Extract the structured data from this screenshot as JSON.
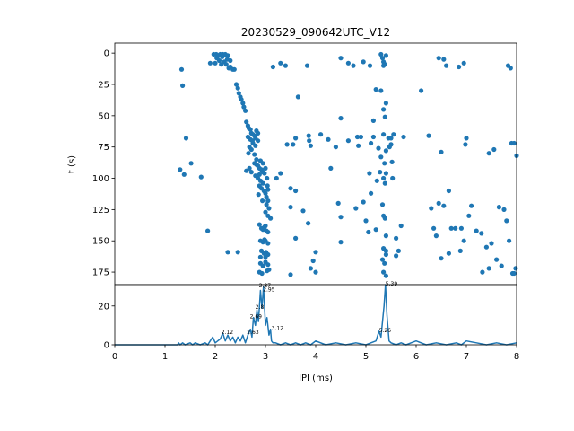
{
  "chart_data": [
    {
      "type": "scatter",
      "title": "20230529_090642UTC_V12",
      "ylabel": "t (s)",
      "xlim": [
        0,
        8
      ],
      "ylim": [
        185,
        -8
      ],
      "y_inverted": true,
      "yticks": [
        0,
        25,
        50,
        75,
        100,
        125,
        150,
        175
      ],
      "marker_color": "#1f77b4",
      "points": [
        [
          1.33,
          13
        ],
        [
          1.35,
          26
        ],
        [
          1.42,
          68
        ],
        [
          1.3,
          93
        ],
        [
          1.38,
          97
        ],
        [
          1.52,
          88
        ],
        [
          1.72,
          99
        ],
        [
          1.85,
          142
        ],
        [
          1.97,
          1
        ],
        [
          2.02,
          1
        ],
        [
          2.07,
          2
        ],
        [
          2.1,
          1
        ],
        [
          2.15,
          1
        ],
        [
          2.2,
          1
        ],
        [
          2.25,
          2
        ],
        [
          2.0,
          8
        ],
        [
          2.08,
          6
        ],
        [
          2.12,
          9
        ],
        [
          2.18,
          7
        ],
        [
          2.22,
          9
        ],
        [
          2.27,
          12
        ],
        [
          2.3,
          11
        ],
        [
          2.35,
          13
        ],
        [
          2.38,
          13
        ],
        [
          2.24,
          5
        ],
        [
          1.9,
          8
        ],
        [
          2.03,
          4
        ],
        [
          2.14,
          3
        ],
        [
          2.3,
          6
        ],
        [
          2.42,
          25
        ],
        [
          2.45,
          28
        ],
        [
          2.47,
          32
        ],
        [
          2.5,
          35
        ],
        [
          2.52,
          37
        ],
        [
          2.55,
          40
        ],
        [
          2.57,
          43
        ],
        [
          2.6,
          46
        ],
        [
          2.62,
          55
        ],
        [
          2.65,
          58
        ],
        [
          2.67,
          60
        ],
        [
          2.7,
          61
        ],
        [
          2.72,
          64
        ],
        [
          2.75,
          65
        ],
        [
          2.78,
          66
        ],
        [
          2.8,
          68
        ],
        [
          2.65,
          67
        ],
        [
          2.7,
          69
        ],
        [
          2.75,
          72
        ],
        [
          2.8,
          74
        ],
        [
          2.68,
          75
        ],
        [
          2.72,
          77
        ],
        [
          2.66,
          80
        ],
        [
          2.78,
          81
        ],
        [
          2.82,
          62
        ],
        [
          2.85,
          64
        ],
        [
          2.74,
          70
        ],
        [
          2.85,
          70
        ],
        [
          2.62,
          94
        ],
        [
          2.68,
          92
        ],
        [
          2.72,
          95
        ],
        [
          2.78,
          88
        ],
        [
          2.82,
          89
        ],
        [
          2.85,
          90
        ],
        [
          2.88,
          92
        ],
        [
          2.92,
          93
        ],
        [
          2.95,
          95
        ],
        [
          2.98,
          96
        ],
        [
          2.8,
          98
        ],
        [
          2.85,
          100
        ],
        [
          2.9,
          102
        ],
        [
          2.95,
          104
        ],
        [
          2.88,
          106
        ],
        [
          2.92,
          108
        ],
        [
          2.97,
          110
        ],
        [
          3.0,
          112
        ],
        [
          3.02,
          115
        ],
        [
          3.05,
          118
        ],
        [
          3.02,
          121
        ],
        [
          3.07,
          124
        ],
        [
          3.0,
          127
        ],
        [
          3.05,
          130
        ],
        [
          2.88,
          97
        ],
        [
          2.82,
          85
        ],
        [
          2.95,
          88
        ],
        [
          2.9,
          86
        ],
        [
          3.0,
          92
        ],
        [
          3.03,
          100
        ],
        [
          3.04,
          106
        ],
        [
          2.86,
          113
        ],
        [
          2.94,
          118
        ],
        [
          3.05,
          109
        ],
        [
          2.88,
          137
        ],
        [
          2.92,
          140
        ],
        [
          2.95,
          141
        ],
        [
          2.98,
          139
        ],
        [
          3.0,
          138
        ],
        [
          3.02,
          142
        ],
        [
          3.05,
          143
        ],
        [
          2.9,
          150
        ],
        [
          2.95,
          151
        ],
        [
          2.98,
          149
        ],
        [
          3.0,
          150
        ],
        [
          3.05,
          152
        ],
        [
          2.92,
          158
        ],
        [
          2.97,
          160
        ],
        [
          3.01,
          159
        ],
        [
          3.05,
          161
        ],
        [
          2.9,
          168
        ],
        [
          2.95,
          170
        ],
        [
          3.0,
          167
        ],
        [
          3.05,
          169
        ],
        [
          2.88,
          175
        ],
        [
          2.93,
          176
        ],
        [
          3.03,
          174
        ],
        [
          3.07,
          173
        ],
        [
          2.9,
          163
        ],
        [
          3.0,
          163
        ],
        [
          2.25,
          159
        ],
        [
          2.45,
          159
        ],
        [
          3.15,
          11
        ],
        [
          3.3,
          8
        ],
        [
          3.4,
          10
        ],
        [
          3.65,
          35
        ],
        [
          3.43,
          73
        ],
        [
          3.55,
          73
        ],
        [
          3.6,
          68
        ],
        [
          3.3,
          96
        ],
        [
          3.5,
          108
        ],
        [
          3.6,
          110
        ],
        [
          3.1,
          132
        ],
        [
          3.5,
          123
        ],
        [
          3.75,
          126
        ],
        [
          3.6,
          148
        ],
        [
          3.85,
          136
        ],
        [
          3.22,
          100
        ],
        [
          3.5,
          177
        ],
        [
          3.9,
          172
        ],
        [
          3.95,
          166
        ],
        [
          4.0,
          175
        ],
        [
          3.83,
          10
        ],
        [
          3.86,
          66
        ],
        [
          3.87,
          70
        ],
        [
          3.9,
          74
        ],
        [
          4.1,
          65
        ],
        [
          4.0,
          159
        ],
        [
          4.25,
          69
        ],
        [
          4.3,
          92
        ],
        [
          4.4,
          75
        ],
        [
          4.45,
          120
        ],
        [
          4.5,
          52
        ],
        [
          4.5,
          131
        ],
        [
          4.5,
          151
        ],
        [
          4.5,
          4
        ],
        [
          4.65,
          70
        ],
        [
          4.65,
          8
        ],
        [
          4.75,
          10
        ],
        [
          4.8,
          124
        ],
        [
          4.83,
          67
        ],
        [
          4.85,
          74
        ],
        [
          4.9,
          67
        ],
        [
          4.95,
          7
        ],
        [
          4.95,
          119
        ],
        [
          5.0,
          134
        ],
        [
          5.05,
          143
        ],
        [
          5.07,
          96
        ],
        [
          5.08,
          10
        ],
        [
          5.1,
          72
        ],
        [
          5.1,
          112
        ],
        [
          5.15,
          54
        ],
        [
          5.2,
          29
        ],
        [
          5.15,
          67
        ],
        [
          5.2,
          141
        ],
        [
          5.25,
          76
        ],
        [
          5.3,
          83
        ],
        [
          5.22,
          102
        ],
        [
          5.28,
          95
        ],
        [
          5.3,
          1
        ],
        [
          5.33,
          4
        ],
        [
          5.35,
          7
        ],
        [
          5.38,
          9
        ],
        [
          5.4,
          2
        ],
        [
          5.35,
          10
        ],
        [
          5.3,
          30
        ],
        [
          5.35,
          45
        ],
        [
          5.4,
          40
        ],
        [
          5.38,
          51
        ],
        [
          5.35,
          65
        ],
        [
          5.4,
          78
        ],
        [
          5.37,
          88
        ],
        [
          5.4,
          96
        ],
        [
          5.35,
          100
        ],
        [
          5.38,
          104
        ],
        [
          5.33,
          121
        ],
        [
          5.35,
          130
        ],
        [
          5.38,
          132
        ],
        [
          5.4,
          146
        ],
        [
          5.35,
          156
        ],
        [
          5.4,
          158
        ],
        [
          5.33,
          165
        ],
        [
          5.37,
          168
        ],
        [
          5.4,
          161
        ],
        [
          5.35,
          175
        ],
        [
          5.4,
          178
        ],
        [
          5.45,
          68
        ],
        [
          5.47,
          75
        ],
        [
          5.5,
          73
        ],
        [
          5.5,
          68
        ],
        [
          5.52,
          87
        ],
        [
          5.53,
          100
        ],
        [
          5.55,
          65
        ],
        [
          5.6,
          148
        ],
        [
          5.65,
          158
        ],
        [
          5.7,
          138
        ],
        [
          5.75,
          67
        ],
        [
          5.6,
          162
        ],
        [
          6.1,
          30
        ],
        [
          6.5,
          79
        ],
        [
          6.5,
          164
        ],
        [
          6.55,
          122
        ],
        [
          6.65,
          160
        ],
        [
          6.25,
          66
        ],
        [
          6.3,
          124
        ],
        [
          6.35,
          140
        ],
        [
          6.4,
          146
        ],
        [
          6.45,
          120
        ],
        [
          6.65,
          110
        ],
        [
          6.7,
          140
        ],
        [
          6.78,
          140
        ],
        [
          6.88,
          158
        ],
        [
          6.9,
          140
        ],
        [
          6.95,
          150
        ],
        [
          6.98,
          73
        ],
        [
          7.0,
          68
        ],
        [
          7.05,
          130
        ],
        [
          7.1,
          122
        ],
        [
          7.2,
          142
        ],
        [
          7.3,
          144
        ],
        [
          7.32,
          175
        ],
        [
          7.4,
          155
        ],
        [
          7.45,
          172
        ],
        [
          7.45,
          80
        ],
        [
          7.5,
          152
        ],
        [
          7.55,
          77
        ],
        [
          7.6,
          165
        ],
        [
          7.65,
          123
        ],
        [
          7.7,
          170
        ],
        [
          7.75,
          125
        ],
        [
          7.8,
          134
        ],
        [
          7.85,
          150
        ],
        [
          7.9,
          72
        ],
        [
          7.92,
          176
        ],
        [
          7.95,
          176
        ],
        [
          7.98,
          172
        ],
        [
          8.0,
          82
        ],
        [
          7.95,
          72
        ],
        [
          7.88,
          12
        ],
        [
          7.83,
          10
        ],
        [
          6.85,
          11
        ],
        [
          6.95,
          8
        ],
        [
          6.45,
          4
        ],
        [
          6.55,
          5
        ],
        [
          6.6,
          10
        ]
      ]
    },
    {
      "type": "line",
      "xlabel": "IPI (ms)",
      "xlim": [
        0,
        8
      ],
      "ylim": [
        0,
        31
      ],
      "xticks": [
        0,
        1,
        2,
        3,
        4,
        5,
        6,
        7,
        8
      ],
      "yticks": [
        0,
        20
      ],
      "line_color": "#1f77b4",
      "series": [
        {
          "x": [
            0.0,
            1.25,
            1.27,
            1.3,
            1.35,
            1.4,
            1.5,
            1.55,
            1.6,
            1.7,
            1.8,
            1.85,
            1.9,
            1.95,
            2.0,
            2.05,
            2.1,
            2.15,
            2.2,
            2.25,
            2.3,
            2.35,
            2.4,
            2.45,
            2.5,
            2.55,
            2.6,
            2.65,
            2.7,
            2.73,
            2.76,
            2.8,
            2.83,
            2.86,
            2.9,
            2.93,
            2.96,
            3.0,
            3.03,
            3.07,
            3.1,
            3.12,
            3.15,
            3.2,
            3.3,
            3.4,
            3.5,
            3.6,
            3.7,
            3.8,
            3.9,
            4.0,
            4.2,
            4.4,
            4.6,
            4.8,
            5.0,
            5.1,
            5.2,
            5.26,
            5.3,
            5.33,
            5.36,
            5.39,
            5.42,
            5.46,
            5.5,
            5.6,
            5.7,
            5.8,
            5.9,
            6.0,
            6.2,
            6.4,
            6.6,
            6.8,
            6.9,
            7.0,
            7.2,
            7.4,
            7.6,
            7.8,
            8.0
          ],
          "y": [
            0,
            0,
            1,
            0,
            1,
            0,
            1,
            0,
            1,
            0,
            1,
            0,
            2,
            4,
            1,
            2,
            3,
            6,
            2,
            5,
            2,
            4,
            1,
            4,
            2,
            5,
            1,
            5,
            8,
            4,
            14,
            10,
            18,
            12,
            28,
            19,
            30,
            10,
            14,
            5,
            8,
            2,
            1,
            1,
            0,
            1,
            0,
            1,
            0,
            1,
            0,
            2,
            0,
            1,
            0,
            1,
            0,
            1,
            2,
            7,
            4,
            12,
            20,
            31,
            15,
            2,
            1,
            0,
            1,
            0,
            1,
            2,
            0,
            1,
            0,
            1,
            0,
            2,
            1,
            0,
            1,
            0,
            1
          ]
        }
      ],
      "annotations": [
        {
          "x": 2.12,
          "y": 6,
          "text": "2.12"
        },
        {
          "x": 2.63,
          "y": 6,
          "text": "2.63"
        },
        {
          "x": 2.69,
          "y": 14,
          "text": "2.69"
        },
        {
          "x": 2.8,
          "y": 19,
          "text": "2.8"
        },
        {
          "x": 2.87,
          "y": 30,
          "text": "2.87"
        },
        {
          "x": 2.95,
          "y": 28,
          "text": "2.95"
        },
        {
          "x": 3.12,
          "y": 8,
          "text": "3.12"
        },
        {
          "x": 5.26,
          "y": 7,
          "text": "5.26"
        },
        {
          "x": 5.39,
          "y": 31,
          "text": "5.39"
        }
      ]
    }
  ]
}
